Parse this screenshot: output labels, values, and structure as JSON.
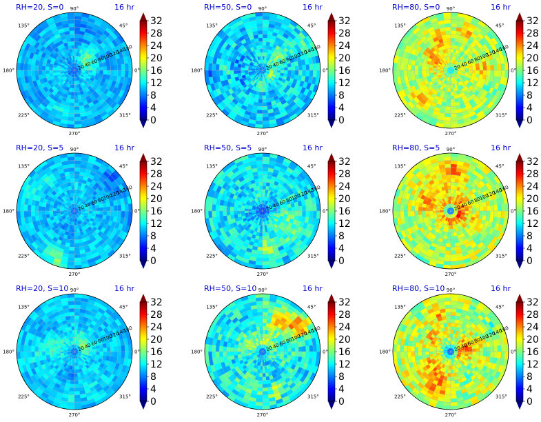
{
  "chart_data": [
    {
      "type": "heatmap",
      "title": "RH=20, S=0",
      "time_label": "16 hr",
      "field_level": 0.3,
      "center_level": 0.2,
      "noise": 0.06
    },
    {
      "type": "heatmap",
      "title": "RH=50, S=0",
      "time_label": "16 hr",
      "field_level": 0.34,
      "center_level": 0.22,
      "noise": 0.1
    },
    {
      "type": "heatmap",
      "title": "RH=80, S=0",
      "time_label": "16 hr",
      "field_level": 0.54,
      "center_level": 0.3,
      "noise": 0.1
    },
    {
      "type": "heatmap",
      "title": "RH=20, S=5",
      "time_label": "16 hr",
      "field_level": 0.32,
      "center_level": 0.2,
      "noise": 0.06
    },
    {
      "type": "heatmap",
      "title": "RH=50, S=5",
      "time_label": "16 hr",
      "field_level": 0.36,
      "center_level": 0.15,
      "noise": 0.1
    },
    {
      "type": "heatmap",
      "title": "RH=80, S=5",
      "time_label": "16 hr",
      "field_level": 0.55,
      "center_level": 0.1,
      "noise": 0.11
    },
    {
      "type": "heatmap",
      "title": "RH=20, S=10",
      "time_label": "16 hr",
      "field_level": 0.32,
      "center_level": 0.2,
      "noise": 0.06
    },
    {
      "type": "heatmap",
      "title": "RH=50, S=10",
      "time_label": "16 hr",
      "field_level": 0.37,
      "center_level": 0.18,
      "noise": 0.11
    },
    {
      "type": "heatmap",
      "title": "RH=80, S=10",
      "time_label": "16 hr",
      "field_level": 0.55,
      "center_level": 0.15,
      "noise": 0.12
    }
  ],
  "angular_ticks": [
    "0°",
    "45°",
    "90°",
    "135°",
    "180°",
    "225°",
    "270°",
    "315°"
  ],
  "radial_ticks": [
    "20",
    "40",
    "60",
    "80",
    "100",
    "120",
    "140",
    "160"
  ],
  "radial_max": 160,
  "colorbar": {
    "ticks": [
      "0",
      "4",
      "8",
      "12",
      "16",
      "20",
      "24",
      "28",
      "32"
    ],
    "min": 0,
    "max": 32,
    "extend": "both",
    "colormap": "jet"
  }
}
